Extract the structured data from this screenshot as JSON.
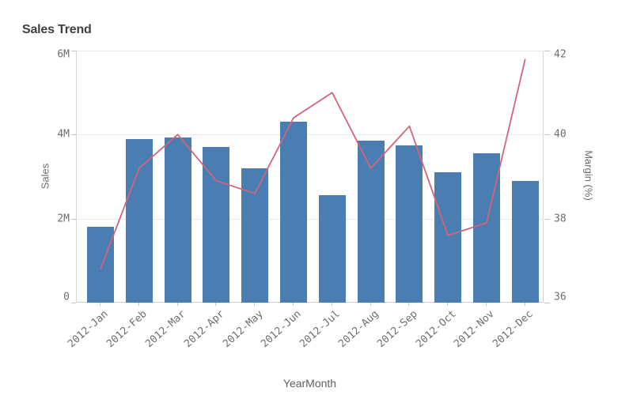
{
  "title": "Sales Trend",
  "chart_data": {
    "type": "combo",
    "title": "Sales Trend",
    "categories": [
      "2012-Jan",
      "2012-Feb",
      "2012-Mar",
      "2012-Apr",
      "2012-May",
      "2012-Jun",
      "2012-Jul",
      "2012-Aug",
      "2012-Sep",
      "2012-Oct",
      "2012-Nov",
      "2012-Dec"
    ],
    "series": [
      {
        "name": "Sales",
        "type": "bar",
        "axis": "left",
        "unit": "millions",
        "color": "#4a7eb2",
        "values": [
          1.8,
          3.9,
          3.93,
          3.7,
          3.2,
          4.3,
          2.55,
          3.85,
          3.75,
          3.1,
          3.55,
          2.9
        ]
      },
      {
        "name": "Margin (%)",
        "type": "line",
        "axis": "right",
        "unit": "percent",
        "color": "#d2647a",
        "values": [
          36.8,
          39.2,
          40.0,
          38.9,
          38.6,
          40.4,
          41.0,
          39.2,
          40.2,
          37.6,
          37.9,
          41.8
        ]
      }
    ],
    "left_axis": {
      "label": "Sales",
      "tick_labels": [
        "6M",
        "4M",
        "2M",
        "0"
      ],
      "min": 0,
      "max": 6
    },
    "right_axis": {
      "label": "Margin (%)",
      "tick_labels": [
        "42",
        "40",
        "38",
        "36"
      ],
      "min": 36,
      "max": 42
    },
    "x_axis": {
      "label": "YearMonth"
    },
    "grid": true,
    "legend_position": "none"
  },
  "colors": {
    "bar": "#4a7eb2",
    "line": "#d2647a",
    "gridline": "#e9e9e9",
    "axis_line": "#cfcfcf",
    "tick_text": "#6e6e6e",
    "title_text": "#404040",
    "axis_title_text": "#6d6d6d"
  }
}
